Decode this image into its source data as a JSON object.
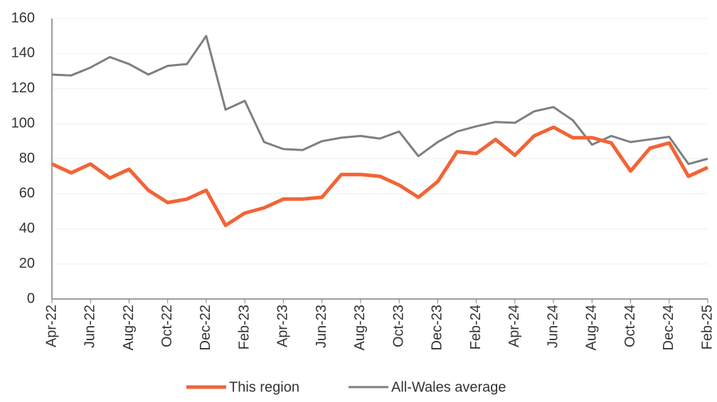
{
  "chart_data": {
    "type": "line",
    "categories": [
      "Apr-22",
      null,
      "Jun-22",
      null,
      "Aug-22",
      null,
      "Oct-22",
      null,
      "Dec-22",
      null,
      "Feb-23",
      null,
      "Apr-23",
      null,
      "Jun-23",
      null,
      "Aug-23",
      null,
      "Oct-23",
      null,
      "Dec-23",
      null,
      "Feb-24",
      null,
      "Apr-24",
      null,
      "Jun-24",
      null,
      "Aug-24",
      null,
      "Oct-24",
      null,
      "Dec-24",
      null,
      "Feb-25"
    ],
    "series": [
      {
        "name": "This region",
        "color": "#f26436",
        "values": [
          77,
          72,
          77,
          69,
          74,
          62,
          55,
          57,
          62,
          42,
          49,
          52,
          57,
          57,
          58,
          71,
          71,
          70,
          65,
          58,
          67,
          84,
          83,
          91,
          82,
          93,
          98,
          92,
          92,
          89,
          73,
          86,
          89,
          70,
          75
        ]
      },
      {
        "name": "All-Wales average",
        "color": "#7f7f7f",
        "values": [
          128,
          127.5,
          132,
          138,
          134,
          128,
          133,
          134,
          150,
          108,
          113,
          89.5,
          85.5,
          85,
          90,
          92,
          93,
          91.5,
          95.5,
          81.5,
          89.5,
          95.5,
          98.5,
          101,
          100.5,
          107,
          109.5,
          102,
          88,
          93,
          89.5,
          91,
          92.5,
          77,
          80
        ]
      }
    ],
    "ylim": [
      0,
      160
    ],
    "yticks": [
      0,
      20,
      40,
      60,
      80,
      100,
      120,
      140,
      160
    ],
    "grid": true,
    "legend": "bottom"
  }
}
